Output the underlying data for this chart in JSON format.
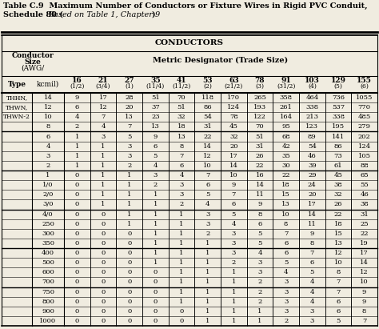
{
  "title_line1": "Table C.9  Maximum Number of Conductors or Fixture Wires in Rigid PVC Conduit,",
  "title_line2_normal": "Schedule 80 (",
  "title_line2_italic": "Based on Table 1, Chapter 9",
  "title_line2_end": ")",
  "conductors_header": "CONDUCTORS",
  "metric_header": "Metric Designator (Trade Size)",
  "type_header": "Type",
  "cond_header_lines": [
    "Conductor",
    "Size",
    "(AWG/",
    "kcmil)"
  ],
  "col_tops": [
    "16",
    "21",
    "27",
    "35",
    "41",
    "53",
    "63",
    "78",
    "91",
    "103",
    "129",
    "155"
  ],
  "col_subs": [
    "(1/2)",
    "(3/4)",
    "(1)",
    "(11/4)",
    "(11/2)",
    "(2)",
    "(21/2)",
    "(3)",
    "(31/2)",
    "(4)",
    "(5)",
    "(6)"
  ],
  "type_label": [
    "THHN,",
    "THWN,",
    "THWN-2"
  ],
  "conductor_sizes": [
    "14",
    "12",
    "10",
    "8",
    "6",
    "4",
    "3",
    "2",
    "1",
    "1/0",
    "2/0",
    "3/0",
    "4/0",
    "250",
    "300",
    "350",
    "400",
    "500",
    "600",
    "700",
    "750",
    "800",
    "900",
    "1000"
  ],
  "group_dividers_after": [
    4,
    8,
    12,
    16,
    20
  ],
  "data": [
    [
      9,
      17,
      28,
      51,
      70,
      118,
      170,
      265,
      358,
      464,
      736,
      1055
    ],
    [
      6,
      12,
      20,
      37,
      51,
      86,
      124,
      193,
      261,
      338,
      537,
      770
    ],
    [
      4,
      7,
      13,
      23,
      32,
      54,
      78,
      122,
      164,
      213,
      338,
      485
    ],
    [
      2,
      4,
      7,
      13,
      18,
      31,
      45,
      70,
      95,
      123,
      195,
      279
    ],
    [
      1,
      3,
      5,
      9,
      13,
      22,
      32,
      51,
      68,
      89,
      141,
      202
    ],
    [
      1,
      1,
      3,
      6,
      8,
      14,
      20,
      31,
      42,
      54,
      86,
      124
    ],
    [
      1,
      1,
      3,
      5,
      7,
      12,
      17,
      26,
      35,
      46,
      73,
      105
    ],
    [
      1,
      1,
      2,
      4,
      6,
      10,
      14,
      22,
      30,
      39,
      61,
      88
    ],
    [
      0,
      1,
      1,
      3,
      4,
      7,
      10,
      16,
      22,
      29,
      45,
      65
    ],
    [
      0,
      1,
      1,
      2,
      3,
      6,
      9,
      14,
      18,
      24,
      38,
      55
    ],
    [
      0,
      1,
      1,
      1,
      3,
      5,
      7,
      11,
      15,
      20,
      32,
      46
    ],
    [
      0,
      1,
      1,
      1,
      2,
      4,
      6,
      9,
      13,
      17,
      26,
      38
    ],
    [
      0,
      0,
      1,
      1,
      1,
      3,
      5,
      8,
      10,
      14,
      22,
      31
    ],
    [
      0,
      0,
      1,
      1,
      1,
      3,
      4,
      6,
      8,
      11,
      18,
      25
    ],
    [
      0,
      0,
      0,
      1,
      1,
      2,
      3,
      5,
      7,
      9,
      15,
      22
    ],
    [
      0,
      0,
      0,
      1,
      1,
      1,
      3,
      5,
      6,
      8,
      13,
      19
    ],
    [
      0,
      0,
      0,
      1,
      1,
      1,
      3,
      4,
      6,
      7,
      12,
      17
    ],
    [
      0,
      0,
      0,
      1,
      1,
      1,
      2,
      3,
      5,
      6,
      10,
      14
    ],
    [
      0,
      0,
      0,
      0,
      1,
      1,
      1,
      3,
      4,
      5,
      8,
      12
    ],
    [
      0,
      0,
      0,
      0,
      1,
      1,
      1,
      2,
      3,
      4,
      7,
      10
    ],
    [
      0,
      0,
      0,
      0,
      1,
      1,
      1,
      2,
      3,
      4,
      7,
      9
    ],
    [
      0,
      0,
      0,
      0,
      1,
      1,
      1,
      2,
      3,
      4,
      6,
      9
    ],
    [
      0,
      0,
      0,
      0,
      0,
      1,
      1,
      1,
      3,
      3,
      6,
      8
    ],
    [
      0,
      0,
      0,
      0,
      0,
      1,
      1,
      1,
      2,
      3,
      5,
      7
    ]
  ],
  "bg_color": "#f0ece0",
  "table_bg": "#f0ece0"
}
